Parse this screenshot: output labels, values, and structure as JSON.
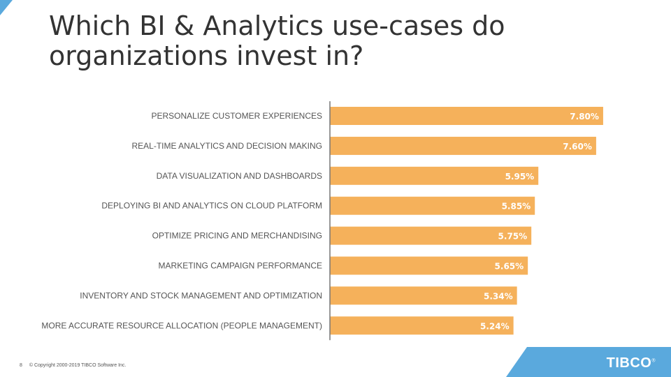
{
  "title": "Which BI & Analytics use-cases do organizations invest in?",
  "footer": {
    "page_number": "8",
    "copyright": "© Copyright 2000-2019 TIBCO Software Inc."
  },
  "logo": {
    "text": "TIBCO",
    "mark": "®"
  },
  "colors": {
    "bar": "#f5b15b",
    "accent": "#5aa9dd",
    "label": "#555555",
    "axis": "#777777"
  },
  "chart_data": {
    "type": "bar",
    "orientation": "horizontal",
    "categories": [
      "PERSONALIZE CUSTOMER EXPERIENCES",
      "REAL-TIME ANALYTICS AND DECISION MAKING",
      "DATA VISUALIZATION AND DASHBOARDS",
      "DEPLOYING BI AND ANALYTICS ON CLOUD PLATFORM",
      "OPTIMIZE PRICING AND MERCHANDISING",
      "MARKETING CAMPAIGN PERFORMANCE",
      "INVENTORY AND STOCK MANAGEMENT AND OPTIMIZATION",
      "MORE ACCURATE RESOURCE ALLOCATION (PEOPLE MANAGEMENT)"
    ],
    "values": [
      7.8,
      7.6,
      5.95,
      5.85,
      5.75,
      5.65,
      5.34,
      5.24
    ],
    "data_labels": [
      "7.80%",
      "7.60%",
      "5.95%",
      "5.85%",
      "5.75%",
      "5.65%",
      "5.34%",
      "5.24%"
    ],
    "xlim": [
      0,
      8.3
    ],
    "grid": false,
    "legend": "none"
  }
}
